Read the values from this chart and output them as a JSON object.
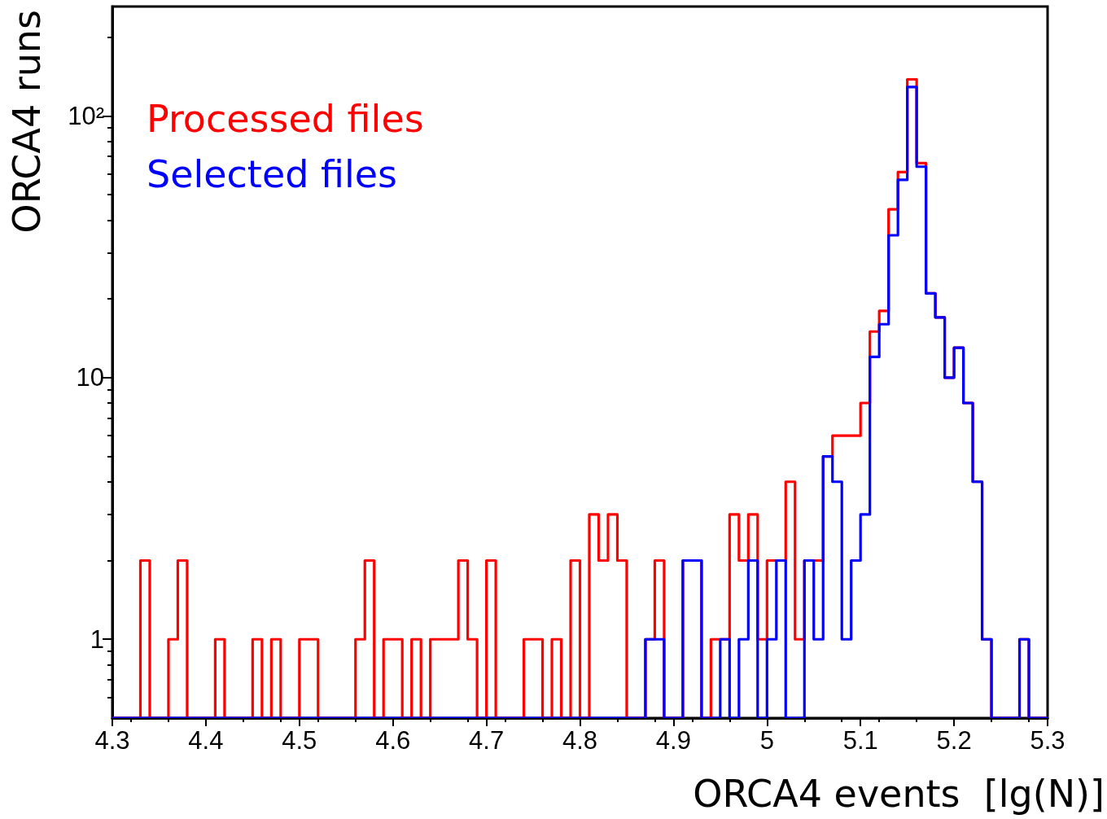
{
  "chart_data": {
    "type": "histogram",
    "xlabel": "ORCA4 events  [lg(N)]",
    "ylabel": "ORCA4 runs",
    "bins": [
      4.3,
      4.31,
      4.32,
      4.33,
      4.34,
      4.35,
      4.36,
      4.37,
      4.38,
      4.39,
      4.4,
      4.41,
      4.42,
      4.43,
      4.44,
      4.45,
      4.46,
      4.47,
      4.48,
      4.49,
      4.5,
      4.51,
      4.52,
      4.53,
      4.54,
      4.55,
      4.56,
      4.57,
      4.58,
      4.59,
      4.6,
      4.61,
      4.62,
      4.63,
      4.64,
      4.65,
      4.66,
      4.67,
      4.68,
      4.69,
      4.7,
      4.71,
      4.72,
      4.73,
      4.74,
      4.75,
      4.76,
      4.77,
      4.78,
      4.79,
      4.8,
      4.81,
      4.82,
      4.83,
      4.84,
      4.85,
      4.86,
      4.87,
      4.88,
      4.89,
      4.9,
      4.91,
      4.92,
      4.93,
      4.94,
      4.95,
      4.96,
      4.97,
      4.98,
      4.99,
      5,
      5.01,
      5.02,
      5.03,
      5.04,
      5.05,
      5.06,
      5.07,
      5.08,
      5.09,
      5.1,
      5.11,
      5.12,
      5.13,
      5.14,
      5.15,
      5.16,
      5.17,
      5.18,
      5.19,
      5.2,
      5.21,
      5.22,
      5.23,
      5.24,
      5.25,
      5.26,
      5.27,
      5.28,
      5.29,
      5.3
    ],
    "series": [
      {
        "name": "Processed files",
        "color": "#ff0000",
        "values": [
          null,
          null,
          null,
          2,
          null,
          null,
          1,
          2,
          null,
          null,
          null,
          1,
          null,
          null,
          null,
          1,
          null,
          1,
          null,
          null,
          1,
          1,
          null,
          null,
          null,
          null,
          1,
          2,
          null,
          1,
          1,
          null,
          1,
          null,
          1,
          1,
          1,
          2,
          1,
          null,
          2,
          null,
          null,
          null,
          1,
          1,
          null,
          1,
          null,
          2,
          null,
          3,
          2,
          3,
          2,
          null,
          null,
          1,
          2,
          null,
          null,
          2,
          2,
          null,
          1,
          1,
          3,
          2,
          3,
          1,
          2,
          2,
          4,
          1,
          2,
          2,
          5,
          6,
          6,
          6,
          8,
          15,
          18,
          44,
          61,
          138,
          66,
          21,
          17,
          10,
          13,
          8,
          4,
          1,
          null,
          null,
          null,
          1,
          null,
          null
        ]
      },
      {
        "name": "Selected files",
        "color": "#0000ff",
        "values": [
          null,
          null,
          null,
          null,
          null,
          null,
          null,
          null,
          null,
          null,
          null,
          null,
          null,
          null,
          null,
          null,
          null,
          null,
          null,
          null,
          null,
          null,
          null,
          null,
          null,
          null,
          null,
          null,
          null,
          null,
          null,
          null,
          null,
          null,
          null,
          null,
          null,
          null,
          null,
          null,
          null,
          null,
          null,
          null,
          null,
          null,
          null,
          null,
          null,
          null,
          null,
          null,
          null,
          null,
          null,
          null,
          null,
          1,
          1,
          null,
          null,
          2,
          2,
          null,
          null,
          1,
          null,
          1,
          2,
          null,
          1,
          2,
          null,
          null,
          2,
          1,
          5,
          4,
          1,
          2,
          3,
          12,
          16,
          35,
          57,
          129,
          64,
          21,
          17,
          10,
          13,
          8,
          4,
          1,
          null,
          null,
          null,
          1,
          null,
          null
        ]
      }
    ],
    "xlim": [
      4.3,
      5.3
    ],
    "xticks": [
      4.3,
      4.4,
      4.5,
      4.6,
      4.7,
      4.8,
      4.9,
      5,
      5.1,
      5.2,
      5.3
    ],
    "ylim": [
      0.5,
      262
    ],
    "yticks": [
      1,
      10,
      {
        "value": 100,
        "label": "10²"
      }
    ],
    "log": true,
    "legend": "top left"
  }
}
